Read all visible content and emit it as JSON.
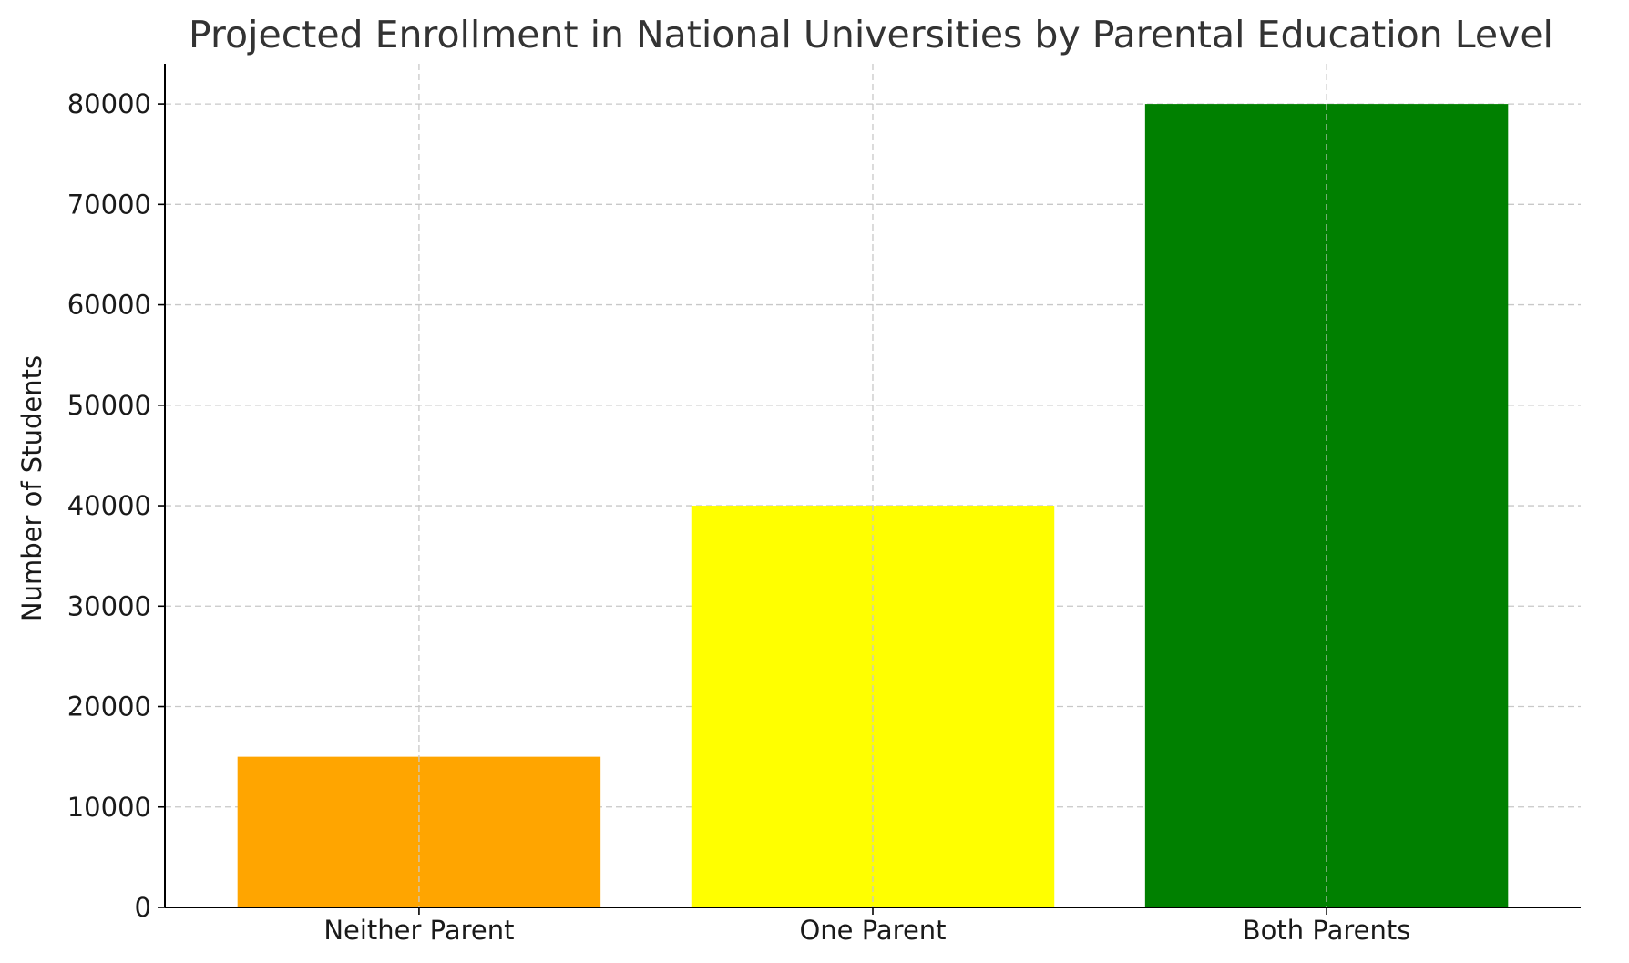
{
  "chart_data": {
    "type": "bar",
    "title": "Projected Enrollment in National Universities by Parental Education Level",
    "xlabel": "",
    "ylabel": "Number of Students",
    "categories": [
      "Neither Parent",
      "One Parent",
      "Both Parents"
    ],
    "values": [
      15000,
      40000,
      80000
    ],
    "colors": [
      "#ffa500",
      "#ffff00",
      "#008000"
    ],
    "ylim": [
      0,
      84000
    ],
    "yticks": [
      0,
      10000,
      20000,
      30000,
      40000,
      50000,
      60000,
      70000,
      80000
    ],
    "ytick_labels": [
      "0",
      "10000",
      "20000",
      "30000",
      "40000",
      "50000",
      "60000",
      "70000",
      "80000"
    ],
    "grid": true,
    "legend": "none"
  }
}
